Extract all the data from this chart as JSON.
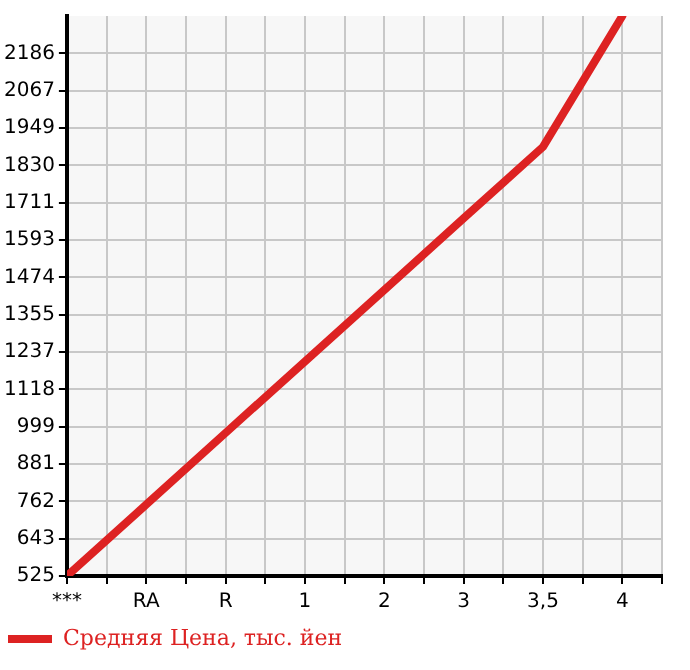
{
  "chart_data": {
    "type": "line",
    "categories": [
      "***",
      "RA",
      "R",
      "1",
      "2",
      "3",
      "3,5",
      "4"
    ],
    "series": [
      {
        "name": "Средняя Цена, тыс. йен",
        "color": "#dd2222",
        "values": [
          525,
          752,
          980,
          1207,
          1434,
          1662,
          1889,
          2305
        ]
      }
    ],
    "ylim": [
      525,
      2305
    ],
    "yticks": [
      525,
      643,
      762,
      881,
      999,
      1118,
      1237,
      1355,
      1474,
      1593,
      1711,
      1830,
      1949,
      2067,
      2186
    ],
    "grid": true,
    "legend": "bottom left",
    "marker": "none",
    "line_style": "solid"
  }
}
